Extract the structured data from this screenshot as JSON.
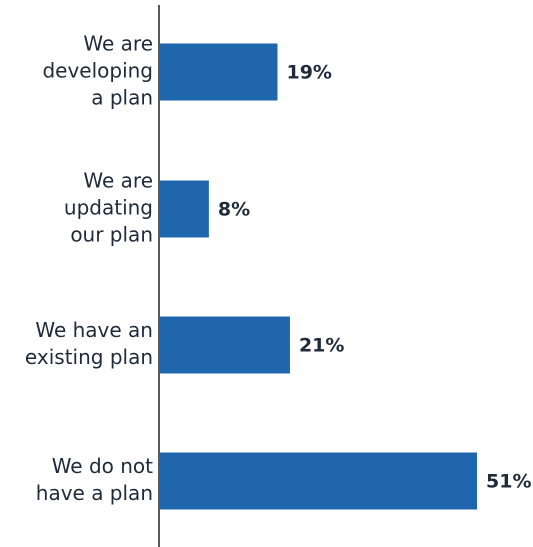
{
  "chart_data": {
    "type": "bar",
    "orientation": "horizontal",
    "categories": [
      [
        "We are",
        "developing",
        "a plan"
      ],
      [
        "We are",
        "updating",
        "our plan"
      ],
      [
        "We have an",
        "existing plan"
      ],
      [
        "We do not",
        "have a plan"
      ]
    ],
    "values": [
      19,
      8,
      21,
      51
    ],
    "value_labels": [
      "19%",
      "8%",
      "21%",
      "51%"
    ],
    "unit": "%",
    "xlim": [
      0,
      51
    ],
    "grid": false,
    "legend": "none",
    "colors": {
      "bar": "#1f66ad",
      "axis": "#5a5a5a",
      "text": "#1f2b3a"
    }
  }
}
